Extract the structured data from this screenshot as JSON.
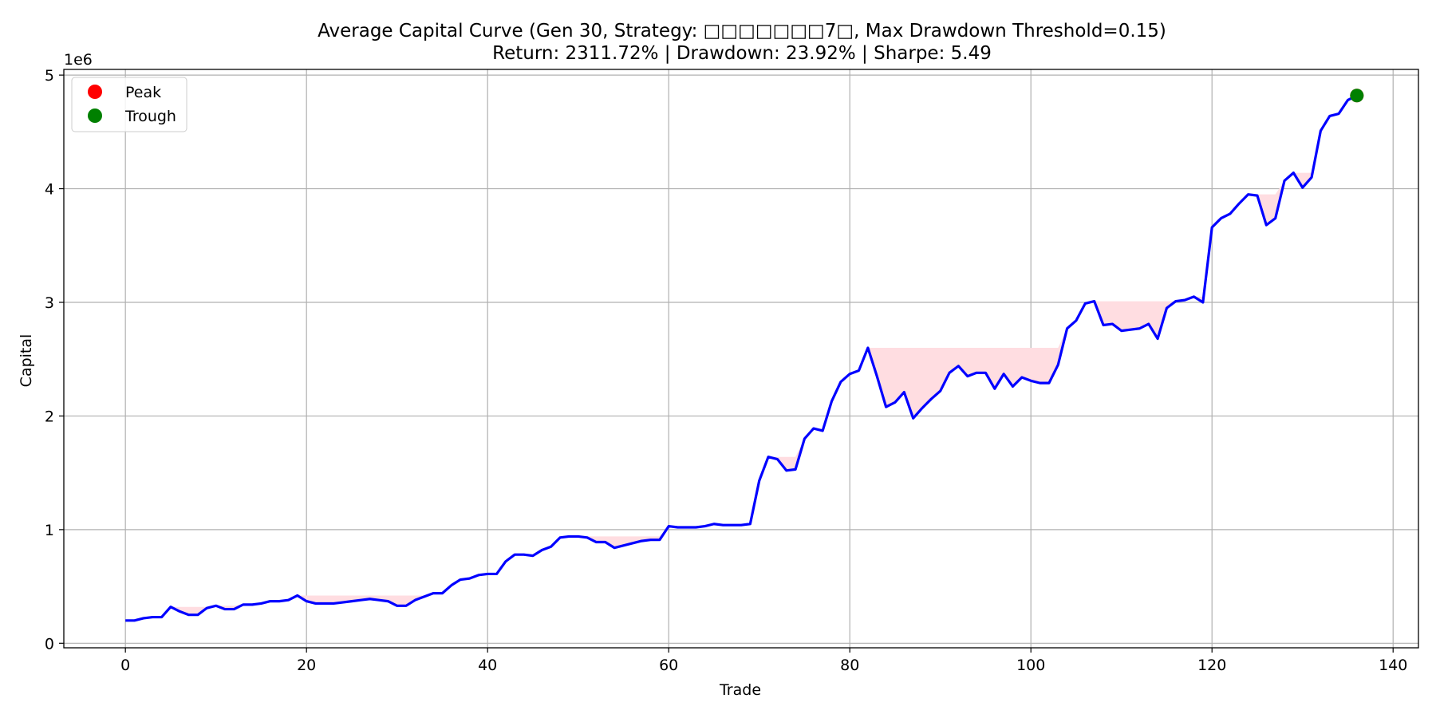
{
  "chart_data": {
    "type": "line",
    "title": "Average Capital Curve (Gen 30, Strategy: □□□□□□□7□, Max Drawdown Threshold=0.15)",
    "subtitle": "Return: 2311.72% | Drawdown: 23.92% | Sharpe: 5.49",
    "xlabel": "Trade",
    "ylabel": "Capital",
    "y_offset_label": "1e6",
    "xlim": [
      -6.8,
      142.8
    ],
    "ylim": [
      -0.04,
      5.05
    ],
    "xticks": [
      0,
      20,
      40,
      60,
      80,
      100,
      120,
      140
    ],
    "yticks": [
      0,
      1,
      2,
      3,
      4,
      5
    ],
    "grid": true,
    "legend_position": "top-left",
    "legend": [
      {
        "label": "Peak",
        "color": "#ff0000"
      },
      {
        "label": "Trough",
        "color": "#008000"
      }
    ],
    "line_color": "#0000ff",
    "drawdown_fill_color": "#ffdde1",
    "series": [
      {
        "values": [
          0.2,
          0.2,
          0.22,
          0.23,
          0.23,
          0.32,
          0.28,
          0.25,
          0.25,
          0.31,
          0.33,
          0.3,
          0.3,
          0.34,
          0.34,
          0.35,
          0.37,
          0.37,
          0.38,
          0.42,
          0.37,
          0.35,
          0.35,
          0.35,
          0.36,
          0.37,
          0.38,
          0.39,
          0.38,
          0.37,
          0.33,
          0.33,
          0.38,
          0.41,
          0.44,
          0.44,
          0.51,
          0.56,
          0.57,
          0.6,
          0.61,
          0.61,
          0.72,
          0.78,
          0.78,
          0.77,
          0.82,
          0.85,
          0.93,
          0.94,
          0.94,
          0.93,
          0.89,
          0.89,
          0.84,
          0.86,
          0.88,
          0.9,
          0.91,
          0.91,
          1.03,
          1.02,
          1.02,
          1.02,
          1.03,
          1.05,
          1.04,
          1.04,
          1.04,
          1.05,
          1.43,
          1.64,
          1.62,
          1.52,
          1.53,
          1.8,
          1.89,
          1.87,
          2.13,
          2.3,
          2.37,
          2.4,
          2.6,
          2.35,
          2.08,
          2.12,
          2.21,
          1.98,
          2.07,
          2.15,
          2.22,
          2.38,
          2.44,
          2.35,
          2.38,
          2.38,
          2.24,
          2.37,
          2.26,
          2.34,
          2.31,
          2.29,
          2.29,
          2.45,
          2.77,
          2.84,
          2.99,
          3.01,
          2.8,
          2.81,
          2.75,
          2.76,
          2.77,
          2.81,
          2.68,
          2.95,
          3.01,
          3.02,
          3.05,
          3.0,
          3.66,
          3.74,
          3.78,
          3.87,
          3.95,
          3.94,
          3.68,
          3.74,
          4.07,
          4.14,
          4.01,
          4.1,
          4.51,
          4.64,
          4.66,
          4.78,
          4.82
        ]
      }
    ],
    "peak_points": [
      {
        "x": 136,
        "y": 4.82
      }
    ],
    "trough_points": [
      {
        "x": 136,
        "y": 4.82
      }
    ]
  }
}
